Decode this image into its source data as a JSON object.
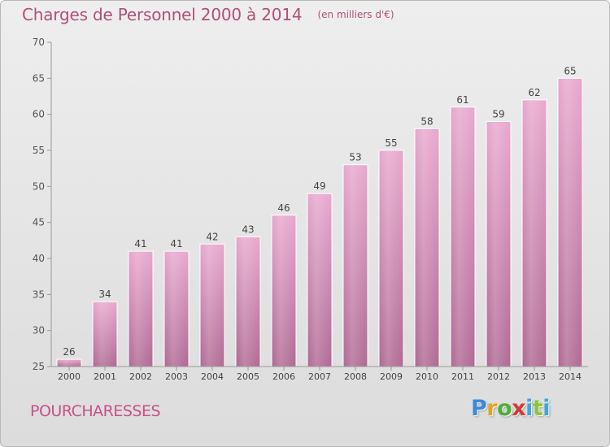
{
  "chart_data": {
    "type": "bar",
    "title": "Charges de Personnel 2000 à 2014",
    "subtitle": "(en milliers d'€)",
    "categories": [
      "2000",
      "2001",
      "2002",
      "2003",
      "2004",
      "2005",
      "2006",
      "2007",
      "2008",
      "2009",
      "2010",
      "2011",
      "2012",
      "2013",
      "2014"
    ],
    "values": [
      26,
      34,
      41,
      41,
      42,
      43,
      46,
      49,
      53,
      55,
      58,
      61,
      59,
      62,
      65
    ],
    "ylim": [
      25,
      70
    ],
    "yticks": [
      25,
      30,
      35,
      40,
      45,
      50,
      55,
      60,
      65,
      70
    ],
    "grid": false,
    "data_labels": true,
    "bar_color_top": "#e8a8ce",
    "bar_color_bottom": "#b06a94"
  },
  "commune": "POURCHARESSES",
  "logo": {
    "letters": [
      "P",
      "r",
      "o",
      "x",
      "i",
      "t",
      "i"
    ]
  }
}
